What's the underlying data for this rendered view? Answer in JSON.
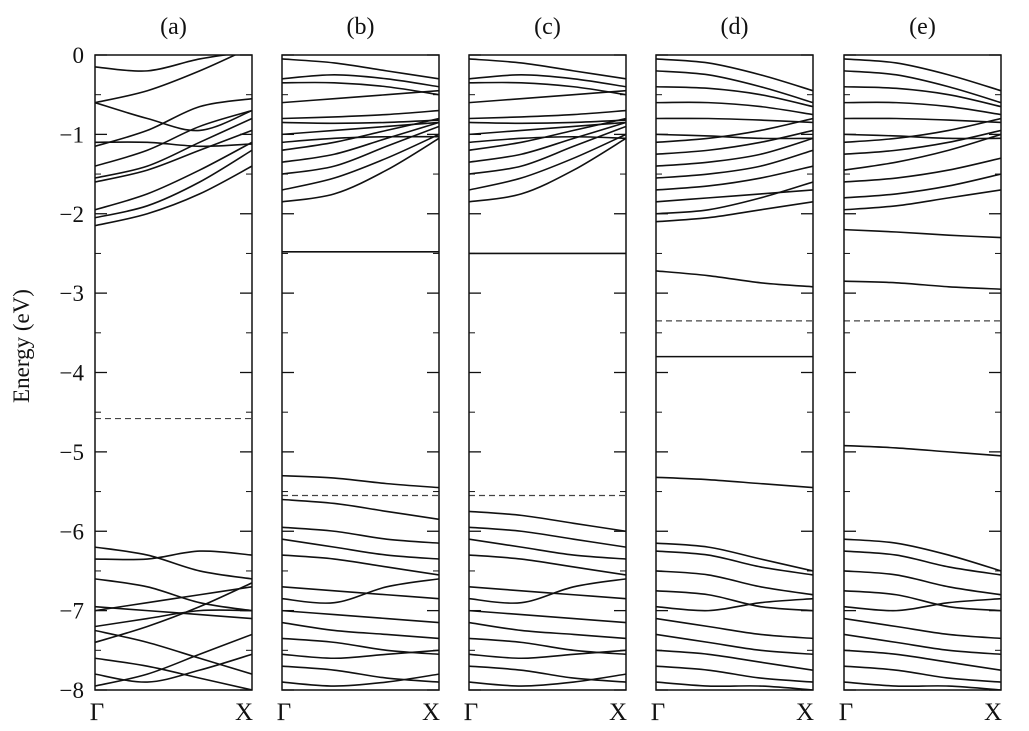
{
  "chart_data": {
    "type": "line",
    "ylabel": "Energy (eV)",
    "ylim": [
      -8,
      0
    ],
    "yticks": [
      0,
      -1,
      -2,
      -3,
      -4,
      -5,
      -6,
      -7,
      -8
    ],
    "ytick_labels": [
      "0",
      "−1",
      "−2",
      "−3",
      "−4",
      "−5",
      "−6",
      "−7",
      "−8"
    ],
    "colors": {
      "band": "#111111",
      "fermi": "#444444",
      "frame": "#111111"
    },
    "panels": [
      {
        "label": "(a)",
        "xticks": [
          "Γ",
          "X"
        ],
        "fermi_level": -4.58,
        "bands": [
          [
            -0.15,
            -0.2,
            -0.05,
            0.05
          ],
          [
            -0.6,
            -0.45,
            -0.2,
            0.1
          ],
          [
            -0.6,
            -0.8,
            -0.95,
            -0.7
          ],
          [
            -1.1,
            -1.1,
            -1.15,
            -1.12
          ],
          [
            -1.15,
            -0.95,
            -0.65,
            -0.55
          ],
          [
            -1.4,
            -1.2,
            -0.9,
            -0.7
          ],
          [
            -1.55,
            -1.4,
            -1.1,
            -0.8
          ],
          [
            -1.6,
            -1.45,
            -1.2,
            -0.95
          ],
          [
            -1.95,
            -1.75,
            -1.45,
            -1.1
          ],
          [
            -2.05,
            -1.9,
            -1.6,
            -1.2
          ],
          [
            -2.15,
            -2.0,
            -1.75,
            -1.4
          ],
          [
            -6.2,
            -6.3,
            -6.5,
            -6.6
          ],
          [
            -6.35,
            -6.35,
            -6.25,
            -6.3
          ],
          [
            -6.6,
            -6.7,
            -6.9,
            -7.0
          ],
          [
            -6.95,
            -7.0,
            -7.05,
            -7.1
          ],
          [
            -7.0,
            -6.9,
            -6.8,
            -6.7
          ],
          [
            -7.2,
            -7.1,
            -7.0,
            -7.0
          ],
          [
            -7.25,
            -7.4,
            -7.6,
            -7.8
          ],
          [
            -7.4,
            -7.2,
            -6.95,
            -6.65
          ],
          [
            -7.6,
            -7.7,
            -7.85,
            -8.0
          ],
          [
            -7.8,
            -7.9,
            -7.75,
            -7.55
          ],
          [
            -7.95,
            -7.8,
            -7.55,
            -7.3
          ]
        ]
      },
      {
        "label": "(b)",
        "xticks": [
          "Γ",
          "X"
        ],
        "fermi_level": -5.55,
        "bands": [
          [
            -0.05,
            -0.1,
            -0.2,
            -0.3
          ],
          [
            -0.3,
            -0.25,
            -0.3,
            -0.4
          ],
          [
            -0.35,
            -0.35,
            -0.4,
            -0.5
          ],
          [
            -0.6,
            -0.55,
            -0.5,
            -0.45
          ],
          [
            -0.8,
            -0.78,
            -0.75,
            -0.7
          ],
          [
            -0.85,
            -0.86,
            -0.85,
            -0.82
          ],
          [
            -1.0,
            -0.95,
            -0.9,
            -0.85
          ],
          [
            -1.1,
            -1.05,
            -1.03,
            -1.03
          ],
          [
            -1.2,
            -1.1,
            -0.95,
            -0.8
          ],
          [
            -1.35,
            -1.25,
            -1.05,
            -0.85
          ],
          [
            -1.5,
            -1.4,
            -1.15,
            -0.9
          ],
          [
            -1.7,
            -1.55,
            -1.3,
            -1.0
          ],
          [
            -1.85,
            -1.75,
            -1.45,
            -1.05
          ],
          [
            -2.48,
            -2.48,
            -2.48,
            -2.48
          ],
          [
            -5.3,
            -5.33,
            -5.4,
            -5.45
          ],
          [
            -5.6,
            -5.65,
            -5.75,
            -5.85
          ],
          [
            -5.95,
            -6.0,
            -6.1,
            -6.15
          ],
          [
            -6.1,
            -6.2,
            -6.3,
            -6.35
          ],
          [
            -6.3,
            -6.35,
            -6.45,
            -6.55
          ],
          [
            -6.7,
            -6.75,
            -6.8,
            -6.85
          ],
          [
            -6.85,
            -6.9,
            -6.7,
            -6.6
          ],
          [
            -7.0,
            -7.05,
            -7.1,
            -7.15
          ],
          [
            -7.15,
            -7.25,
            -7.3,
            -7.35
          ],
          [
            -7.35,
            -7.4,
            -7.5,
            -7.55
          ],
          [
            -7.55,
            -7.6,
            -7.55,
            -7.5
          ],
          [
            -7.7,
            -7.75,
            -7.85,
            -7.9
          ],
          [
            -7.9,
            -7.95,
            -7.9,
            -7.8
          ]
        ]
      },
      {
        "label": "(c)",
        "xticks": [
          "Γ",
          "X"
        ],
        "fermi_level": -5.55,
        "bands": [
          [
            -0.05,
            -0.1,
            -0.2,
            -0.3
          ],
          [
            -0.3,
            -0.25,
            -0.3,
            -0.4
          ],
          [
            -0.35,
            -0.35,
            -0.4,
            -0.5
          ],
          [
            -0.6,
            -0.55,
            -0.5,
            -0.45
          ],
          [
            -0.8,
            -0.78,
            -0.75,
            -0.7
          ],
          [
            -0.85,
            -0.86,
            -0.85,
            -0.82
          ],
          [
            -1.0,
            -0.95,
            -0.9,
            -0.85
          ],
          [
            -1.1,
            -1.05,
            -1.03,
            -1.05
          ],
          [
            -1.2,
            -1.1,
            -0.95,
            -0.8
          ],
          [
            -1.35,
            -1.25,
            -1.05,
            -0.85
          ],
          [
            -1.5,
            -1.4,
            -1.15,
            -0.9
          ],
          [
            -1.7,
            -1.55,
            -1.3,
            -1.0
          ],
          [
            -1.85,
            -1.75,
            -1.45,
            -1.05
          ],
          [
            -2.5,
            -2.5,
            -2.5,
            -2.5
          ],
          [
            -5.75,
            -5.8,
            -5.9,
            -6.0
          ],
          [
            -5.95,
            -6.0,
            -6.1,
            -6.2
          ],
          [
            -6.1,
            -6.2,
            -6.3,
            -6.35
          ],
          [
            -6.3,
            -6.35,
            -6.45,
            -6.55
          ],
          [
            -6.7,
            -6.75,
            -6.8,
            -6.85
          ],
          [
            -6.85,
            -6.9,
            -6.7,
            -6.6
          ],
          [
            -7.0,
            -7.05,
            -7.1,
            -7.15
          ],
          [
            -7.15,
            -7.25,
            -7.3,
            -7.35
          ],
          [
            -7.35,
            -7.4,
            -7.5,
            -7.55
          ],
          [
            -7.55,
            -7.6,
            -7.55,
            -7.5
          ],
          [
            -7.7,
            -7.75,
            -7.85,
            -7.9
          ],
          [
            -7.9,
            -7.95,
            -7.9,
            -7.8
          ]
        ]
      },
      {
        "label": "(d)",
        "xticks": [
          "Γ",
          "X"
        ],
        "fermi_level": -3.35,
        "bands": [
          [
            -0.05,
            -0.1,
            -0.25,
            -0.45
          ],
          [
            -0.2,
            -0.25,
            -0.4,
            -0.6
          ],
          [
            -0.4,
            -0.42,
            -0.5,
            -0.65
          ],
          [
            -0.6,
            -0.6,
            -0.65,
            -0.75
          ],
          [
            -0.8,
            -0.8,
            -0.82,
            -0.85
          ],
          [
            -1.0,
            -1.02,
            -1.05,
            -1.05
          ],
          [
            -1.1,
            -1.05,
            -0.95,
            -0.8
          ],
          [
            -1.25,
            -1.2,
            -1.1,
            -0.95
          ],
          [
            -1.4,
            -1.35,
            -1.25,
            -1.05
          ],
          [
            -1.55,
            -1.5,
            -1.4,
            -1.2
          ],
          [
            -1.7,
            -1.65,
            -1.55,
            -1.4
          ],
          [
            -1.85,
            -1.8,
            -1.75,
            -1.7
          ],
          [
            -2.0,
            -1.95,
            -1.8,
            -1.6
          ],
          [
            -2.1,
            -2.05,
            -1.95,
            -1.85
          ],
          [
            -2.72,
            -2.78,
            -2.87,
            -2.92
          ],
          [
            -3.8,
            -3.8,
            -3.8,
            -3.8
          ],
          [
            -5.32,
            -5.35,
            -5.4,
            -5.45
          ],
          [
            -6.15,
            -6.2,
            -6.35,
            -6.5
          ],
          [
            -6.25,
            -6.3,
            -6.45,
            -6.55
          ],
          [
            -6.5,
            -6.55,
            -6.7,
            -6.8
          ],
          [
            -6.75,
            -6.8,
            -6.95,
            -7.0
          ],
          [
            -6.95,
            -7.0,
            -6.9,
            -6.85
          ],
          [
            -7.1,
            -7.2,
            -7.3,
            -7.35
          ],
          [
            -7.3,
            -7.4,
            -7.5,
            -7.55
          ],
          [
            -7.5,
            -7.55,
            -7.65,
            -7.75
          ],
          [
            -7.7,
            -7.75,
            -7.85,
            -7.9
          ],
          [
            -7.9,
            -7.95,
            -7.95,
            -8.0
          ]
        ]
      },
      {
        "label": "(e)",
        "xticks": [
          "Γ",
          "X"
        ],
        "fermi_level": -3.35,
        "bands": [
          [
            -0.05,
            -0.1,
            -0.25,
            -0.45
          ],
          [
            -0.2,
            -0.25,
            -0.4,
            -0.6
          ],
          [
            -0.4,
            -0.42,
            -0.5,
            -0.65
          ],
          [
            -0.6,
            -0.6,
            -0.65,
            -0.75
          ],
          [
            -0.8,
            -0.8,
            -0.82,
            -0.85
          ],
          [
            -1.0,
            -1.02,
            -1.05,
            -1.05
          ],
          [
            -1.1,
            -1.05,
            -0.95,
            -0.8
          ],
          [
            -1.25,
            -1.2,
            -1.1,
            -0.95
          ],
          [
            -1.45,
            -1.35,
            -1.2,
            -1.0
          ],
          [
            -1.6,
            -1.55,
            -1.45,
            -1.3
          ],
          [
            -1.8,
            -1.75,
            -1.65,
            -1.5
          ],
          [
            -1.95,
            -1.9,
            -1.8,
            -1.7
          ],
          [
            -2.2,
            -2.23,
            -2.27,
            -2.3
          ],
          [
            -2.85,
            -2.87,
            -2.92,
            -2.95
          ],
          [
            -4.92,
            -4.95,
            -5.0,
            -5.05
          ],
          [
            -6.1,
            -6.15,
            -6.3,
            -6.5
          ],
          [
            -6.25,
            -6.3,
            -6.45,
            -6.55
          ],
          [
            -6.5,
            -6.55,
            -6.7,
            -6.8
          ],
          [
            -6.75,
            -6.8,
            -6.95,
            -7.0
          ],
          [
            -6.95,
            -7.0,
            -6.9,
            -6.85
          ],
          [
            -7.1,
            -7.2,
            -7.3,
            -7.35
          ],
          [
            -7.3,
            -7.4,
            -7.5,
            -7.55
          ],
          [
            -7.5,
            -7.55,
            -7.65,
            -7.75
          ],
          [
            -7.7,
            -7.75,
            -7.85,
            -7.9
          ],
          [
            -7.9,
            -7.95,
            -7.95,
            -8.0
          ]
        ]
      }
    ]
  }
}
